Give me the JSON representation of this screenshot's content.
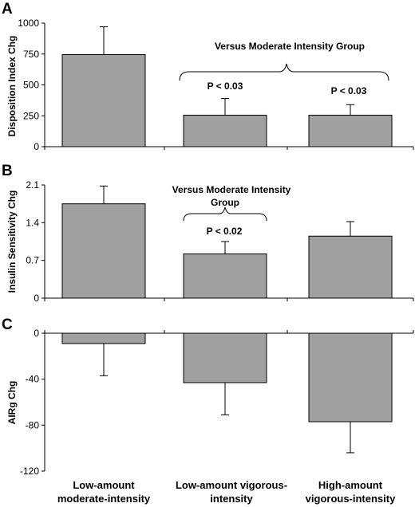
{
  "categories": [
    "Low-amount moderate-intensity",
    "Low-amount vigorous-intensity",
    "High-amount vigorous-intensity"
  ],
  "category_labels": [
    [
      "Low-amount",
      "moderate-intensity"
    ],
    [
      "Low-amount vigorous-",
      "intensity"
    ],
    [
      "High-amount",
      "vigorous-intensity"
    ]
  ],
  "colors": {
    "bar": "#a0a0a0",
    "stroke": "#000000"
  },
  "chart_data": [
    {
      "panel": "A",
      "type": "bar",
      "title": "",
      "xlabel": "",
      "ylabel": "Disposition Index Chg",
      "categories": [
        "Low-amount moderate-intensity",
        "Low-amount vigorous-intensity",
        "High-amount vigorous-intensity"
      ],
      "values": [
        745,
        255,
        255
      ],
      "errors": [
        225,
        135,
        85
      ],
      "ylim": [
        0,
        1000
      ],
      "yticks": [
        0,
        250,
        500,
        750,
        1000
      ],
      "tick_labels": [
        "0",
        "250",
        "500",
        "750",
        "1000"
      ],
      "grid": false,
      "annotations": {
        "bracket": "Versus Moderate Intensity Group",
        "p_values": [
          "",
          "P < 0.03",
          "P < 0.03"
        ]
      }
    },
    {
      "panel": "B",
      "type": "bar",
      "title": "",
      "xlabel": "",
      "ylabel": "Insulin Sensitivity Chg",
      "categories": [
        "Low-amount moderate-intensity",
        "Low-amount vigorous-intensity",
        "High-amount vigorous-intensity"
      ],
      "values": [
        1.75,
        0.82,
        1.15
      ],
      "errors": [
        0.33,
        0.23,
        0.27
      ],
      "ylim": [
        0,
        2.1
      ],
      "yticks": [
        0,
        0.7,
        1.4,
        2.1
      ],
      "tick_labels": [
        "0",
        "0.7",
        "1.4",
        "2.1"
      ],
      "grid": false,
      "annotations": {
        "bracket_lines": [
          "Versus Moderate Intensity",
          "Group"
        ],
        "p_values": [
          "",
          "P < 0.02",
          ""
        ]
      }
    },
    {
      "panel": "C",
      "type": "bar",
      "title": "",
      "xlabel": "",
      "ylabel": "AIRg Chg",
      "categories": [
        "Low-amount moderate-intensity",
        "Low-amount vigorous-intensity",
        "High-amount vigorous-intensity"
      ],
      "values": [
        -9,
        -43,
        -77
      ],
      "errors": [
        28,
        28,
        27
      ],
      "ylim": [
        -120,
        0
      ],
      "yticks": [
        0,
        -40,
        -80,
        -120
      ],
      "tick_labels": [
        "0",
        "-40",
        "-80",
        "-120"
      ],
      "grid": false
    }
  ]
}
